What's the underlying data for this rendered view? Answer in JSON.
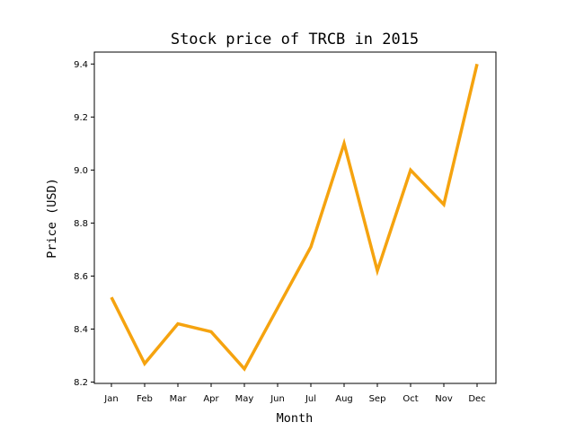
{
  "chart_data": {
    "type": "line",
    "title": "Stock price of TRCB in 2015",
    "xlabel": "Month",
    "ylabel": "Price (USD)",
    "categories": [
      "Jan",
      "Feb",
      "Mar",
      "Apr",
      "May",
      "Jun",
      "Jul",
      "Aug",
      "Sep",
      "Oct",
      "Nov",
      "Dec"
    ],
    "series": [
      {
        "values": [
          8.52,
          8.27,
          8.42,
          8.39,
          8.25,
          8.48,
          8.71,
          9.1,
          8.62,
          9.0,
          8.87,
          9.4
        ],
        "color": "#f5a30f"
      }
    ],
    "ylim": [
      8.195,
      9.445
    ],
    "yticks": [
      8.2,
      8.4,
      8.6,
      8.8,
      9.0,
      9.2,
      9.4
    ],
    "grid": false,
    "legend": "none"
  }
}
